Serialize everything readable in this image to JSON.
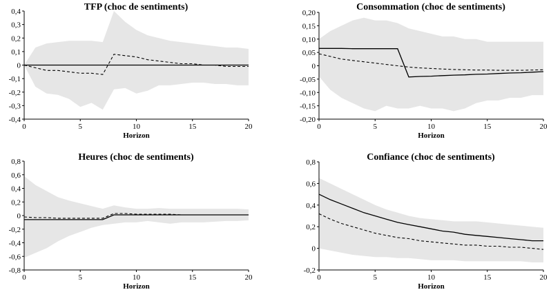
{
  "chart_data": [
    {
      "type": "line",
      "title": "TFP (choc de sentiments)",
      "xlabel": "Horizon",
      "ylabel": "",
      "xlim": [
        0,
        20
      ],
      "ylim": [
        -0.4,
        0.4
      ],
      "x_ticks": [
        0,
        5,
        10,
        15,
        20
      ],
      "y_ticks": [
        -0.4,
        -0.3,
        -0.2,
        -0.1,
        0,
        0.1,
        0.2,
        0.3,
        0.4
      ],
      "y_tick_labels": [
        "-0,4",
        "-0,3",
        "-0,2",
        "-0,1",
        "0",
        "0,1",
        "0,2",
        "0,3",
        "0,4"
      ],
      "grid": false,
      "x": [
        0,
        1,
        2,
        3,
        4,
        5,
        6,
        7,
        8,
        9,
        10,
        11,
        12,
        13,
        14,
        15,
        16,
        17,
        18,
        19,
        20
      ],
      "band_upper": [
        0.0,
        0.13,
        0.16,
        0.17,
        0.18,
        0.18,
        0.18,
        0.17,
        0.4,
        0.32,
        0.26,
        0.22,
        0.2,
        0.18,
        0.17,
        0.16,
        0.15,
        0.14,
        0.13,
        0.13,
        0.12
      ],
      "band_lower": [
        0.0,
        -0.16,
        -0.21,
        -0.22,
        -0.25,
        -0.31,
        -0.28,
        -0.33,
        -0.18,
        -0.17,
        -0.21,
        -0.19,
        -0.15,
        -0.15,
        -0.14,
        -0.13,
        -0.13,
        -0.14,
        -0.14,
        -0.15,
        -0.15
      ],
      "series": [
        {
          "style": "solid",
          "values": [
            0,
            0,
            0,
            0,
            0,
            0,
            0,
            0,
            0,
            0,
            0,
            0,
            0,
            0,
            0,
            0,
            0,
            0,
            0,
            0,
            0
          ]
        },
        {
          "style": "dashed",
          "values": [
            0.0,
            -0.02,
            -0.04,
            -0.04,
            -0.05,
            -0.06,
            -0.06,
            -0.07,
            0.08,
            0.07,
            0.06,
            0.04,
            0.03,
            0.02,
            0.01,
            0.01,
            0.0,
            0.0,
            -0.01,
            -0.01,
            -0.01
          ]
        }
      ]
    },
    {
      "type": "line",
      "title": "Consommation (choc de sentiments)",
      "xlabel": "Horizon",
      "ylabel": "",
      "xlim": [
        0,
        20
      ],
      "ylim": [
        -0.2,
        0.2
      ],
      "x_ticks": [
        0,
        5,
        10,
        15,
        20
      ],
      "y_ticks": [
        -0.2,
        -0.15,
        -0.1,
        -0.05,
        0,
        0.05,
        0.1,
        0.15,
        0.2
      ],
      "y_tick_labels": [
        "-0,20",
        "-0,15",
        "-0,10",
        "-0,05",
        "0",
        "0,05",
        "0,10",
        "0,15",
        "0,20"
      ],
      "grid": false,
      "x": [
        0,
        1,
        2,
        3,
        4,
        5,
        6,
        7,
        8,
        9,
        10,
        11,
        12,
        13,
        14,
        15,
        16,
        17,
        18,
        19,
        20
      ],
      "band_upper": [
        0.1,
        0.13,
        0.15,
        0.17,
        0.18,
        0.17,
        0.17,
        0.16,
        0.14,
        0.13,
        0.12,
        0.11,
        0.11,
        0.1,
        0.1,
        0.09,
        0.09,
        0.09,
        0.09,
        0.09,
        0.09
      ],
      "band_lower": [
        -0.04,
        -0.09,
        -0.12,
        -0.14,
        -0.16,
        -0.17,
        -0.15,
        -0.16,
        -0.16,
        -0.15,
        -0.16,
        -0.16,
        -0.17,
        -0.16,
        -0.14,
        -0.13,
        -0.13,
        -0.12,
        -0.12,
        -0.11,
        -0.11
      ],
      "series": [
        {
          "style": "solid",
          "values": [
            0.065,
            0.065,
            0.065,
            0.064,
            0.064,
            0.064,
            0.064,
            0.064,
            -0.042,
            -0.04,
            -0.039,
            -0.037,
            -0.035,
            -0.034,
            -0.032,
            -0.031,
            -0.029,
            -0.027,
            -0.026,
            -0.024,
            -0.022
          ]
        },
        {
          "style": "dashed",
          "values": [
            0.045,
            0.035,
            0.025,
            0.02,
            0.015,
            0.01,
            0.005,
            0.0,
            -0.005,
            -0.008,
            -0.01,
            -0.012,
            -0.014,
            -0.015,
            -0.016,
            -0.016,
            -0.017,
            -0.017,
            -0.017,
            -0.016,
            -0.015
          ]
        }
      ]
    },
    {
      "type": "line",
      "title": "Heures (choc de sentiments)",
      "xlabel": "Horizon",
      "ylabel": "",
      "xlim": [
        0,
        20
      ],
      "ylim": [
        -0.8,
        0.8
      ],
      "x_ticks": [
        0,
        5,
        10,
        15,
        20
      ],
      "y_ticks": [
        -0.8,
        -0.6,
        -0.4,
        -0.2,
        0,
        0.2,
        0.4,
        0.6,
        0.8
      ],
      "y_tick_labels": [
        "-0,8",
        "-0,6",
        "-0,4",
        "-0,2",
        "0",
        "0,2",
        "0,4",
        "0,6",
        "0,8"
      ],
      "grid": false,
      "x": [
        0,
        1,
        2,
        3,
        4,
        5,
        6,
        7,
        8,
        9,
        10,
        11,
        12,
        13,
        14,
        15,
        16,
        17,
        18,
        19,
        20
      ],
      "band_upper": [
        0.58,
        0.45,
        0.36,
        0.27,
        0.22,
        0.18,
        0.14,
        0.1,
        0.15,
        0.12,
        0.1,
        0.1,
        0.11,
        0.1,
        0.1,
        0.1,
        0.1,
        0.1,
        0.1,
        0.1,
        0.09
      ],
      "band_lower": [
        -0.62,
        -0.55,
        -0.48,
        -0.38,
        -0.3,
        -0.24,
        -0.18,
        -0.14,
        -0.12,
        -0.1,
        -0.1,
        -0.08,
        -0.1,
        -0.12,
        -0.1,
        -0.1,
        -0.1,
        -0.09,
        -0.08,
        -0.08,
        -0.07
      ],
      "series": [
        {
          "style": "solid",
          "values": [
            -0.06,
            -0.06,
            -0.06,
            -0.06,
            -0.06,
            -0.06,
            -0.06,
            -0.06,
            0.01,
            0.01,
            0.01,
            0.01,
            0.01,
            0.01,
            0.01,
            0.01,
            0.01,
            0.01,
            0.01,
            0.01,
            0.01
          ]
        },
        {
          "style": "dashed",
          "values": [
            -0.02,
            -0.03,
            -0.03,
            -0.04,
            -0.04,
            -0.04,
            -0.04,
            -0.04,
            0.03,
            0.03,
            0.02,
            0.02,
            0.02,
            0.02,
            0.01,
            0.01,
            0.01,
            0.01,
            0.01,
            0.01,
            0.01
          ]
        }
      ]
    },
    {
      "type": "line",
      "title": "Confiance (choc de sentiments)",
      "xlabel": "Horizon",
      "ylabel": "",
      "xlim": [
        0,
        20
      ],
      "ylim": [
        -0.2,
        0.8
      ],
      "x_ticks": [
        0,
        5,
        10,
        15,
        20
      ],
      "y_ticks": [
        -0.2,
        0,
        0.2,
        0.4,
        0.6,
        0.8
      ],
      "y_tick_labels": [
        "-0,2",
        "0",
        "0,2",
        "0,4",
        "0,6",
        "0,8"
      ],
      "grid": false,
      "x": [
        0,
        1,
        2,
        3,
        4,
        5,
        6,
        7,
        8,
        9,
        10,
        11,
        12,
        13,
        14,
        15,
        16,
        17,
        18,
        19,
        20
      ],
      "band_upper": [
        0.65,
        0.6,
        0.55,
        0.5,
        0.45,
        0.4,
        0.36,
        0.33,
        0.3,
        0.28,
        0.27,
        0.26,
        0.25,
        0.25,
        0.25,
        0.24,
        0.23,
        0.22,
        0.21,
        0.2,
        0.19
      ],
      "band_lower": [
        0.0,
        -0.02,
        -0.04,
        -0.06,
        -0.07,
        -0.08,
        -0.08,
        -0.09,
        -0.09,
        -0.1,
        -0.11,
        -0.11,
        -0.11,
        -0.12,
        -0.12,
        -0.12,
        -0.12,
        -0.12,
        -0.12,
        -0.13,
        -0.13
      ],
      "series": [
        {
          "style": "solid",
          "values": [
            0.5,
            0.45,
            0.41,
            0.37,
            0.33,
            0.3,
            0.27,
            0.24,
            0.22,
            0.2,
            0.18,
            0.16,
            0.15,
            0.13,
            0.12,
            0.11,
            0.1,
            0.09,
            0.08,
            0.07,
            0.07
          ]
        },
        {
          "style": "dashed",
          "values": [
            0.32,
            0.27,
            0.23,
            0.2,
            0.17,
            0.14,
            0.12,
            0.1,
            0.09,
            0.07,
            0.06,
            0.05,
            0.04,
            0.03,
            0.03,
            0.02,
            0.02,
            0.01,
            0.01,
            0.0,
            -0.01
          ]
        }
      ]
    }
  ]
}
